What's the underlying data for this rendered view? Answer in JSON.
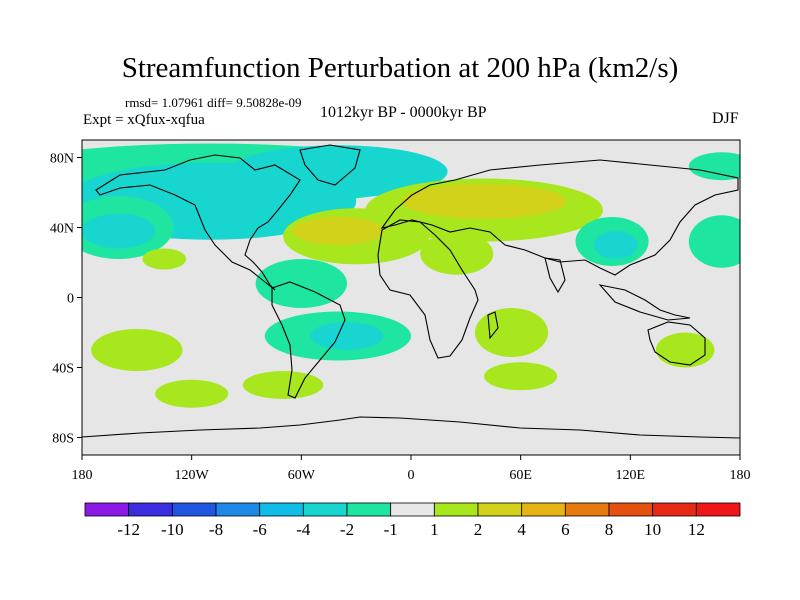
{
  "title": "Streamfunction Perturbation at 200 hPa (km2/s)",
  "stats": "rmsd= 1.07961 diff= 9.50828e-09",
  "expt": "Expt = xQfux-xqfua",
  "period": "1012kyr BP - 0000kyr BP",
  "season": "DJF",
  "lat_ticks": [
    "80N",
    "40N",
    "0",
    "40S",
    "80S"
  ],
  "lon_ticks": [
    "180",
    "120W",
    "60W",
    "0",
    "60E",
    "120E",
    "180"
  ],
  "colorbar": {
    "labels": [
      "-12",
      "-10",
      "-8",
      "-6",
      "-4",
      "-2",
      "-1",
      "1",
      "2",
      "4",
      "6",
      "8",
      "10",
      "12"
    ],
    "colors": [
      "#8c1ae6",
      "#3b2de0",
      "#1f55e0",
      "#1e88e6",
      "#0fbde6",
      "#17d6d0",
      "#1ee6a0",
      "#e8e8e8",
      "#a8e61e",
      "#d2d21a",
      "#e6b414",
      "#e67a0f",
      "#e6500f",
      "#e62814",
      "#ee1616"
    ]
  },
  "map": {
    "land_color": "#e6e6e6",
    "coast_color": "#000000",
    "regions": [
      {
        "color": "#1ee6a0",
        "lon": -110,
        "lat": 70,
        "rx": 120,
        "ry": 18
      },
      {
        "color": "#17d6d0",
        "lon": -110,
        "lat": 55,
        "rx": 80,
        "ry": 22
      },
      {
        "color": "#17d6d0",
        "lon": -40,
        "lat": 72,
        "rx": 60,
        "ry": 15
      },
      {
        "color": "#1ee6a0",
        "lon": -160,
        "lat": 40,
        "rx": 30,
        "ry": 18
      },
      {
        "color": "#17d6d0",
        "lon": -160,
        "lat": 38,
        "rx": 20,
        "ry": 10
      },
      {
        "color": "#a8e61e",
        "lon": -30,
        "lat": 35,
        "rx": 40,
        "ry": 16
      },
      {
        "color": "#d2d21a",
        "lon": -40,
        "lat": 38,
        "rx": 25,
        "ry": 8
      },
      {
        "color": "#a8e61e",
        "lon": 40,
        "lat": 50,
        "rx": 65,
        "ry": 18
      },
      {
        "color": "#d2d21a",
        "lon": 40,
        "lat": 55,
        "rx": 45,
        "ry": 10
      },
      {
        "color": "#a8e61e",
        "lon": 25,
        "lat": 25,
        "rx": 20,
        "ry": 12
      },
      {
        "color": "#1ee6a0",
        "lon": 110,
        "lat": 32,
        "rx": 20,
        "ry": 14
      },
      {
        "color": "#17d6d0",
        "lon": 112,
        "lat": 30,
        "rx": 12,
        "ry": 8
      },
      {
        "color": "#1ee6a0",
        "lon": 170,
        "lat": 32,
        "rx": 18,
        "ry": 15
      },
      {
        "color": "#1ee6a0",
        "lon": 170,
        "lat": 75,
        "rx": 18,
        "ry": 8
      },
      {
        "color": "#a8e61e",
        "lon": -135,
        "lat": 22,
        "rx": 12,
        "ry": 6
      },
      {
        "color": "#1ee6a0",
        "lon": -60,
        "lat": 8,
        "rx": 25,
        "ry": 14
      },
      {
        "color": "#1ee6a0",
        "lon": -40,
        "lat": -22,
        "rx": 40,
        "ry": 14
      },
      {
        "color": "#17d6d0",
        "lon": -35,
        "lat": -22,
        "rx": 20,
        "ry": 8
      },
      {
        "color": "#a8e61e",
        "lon": -150,
        "lat": -30,
        "rx": 25,
        "ry": 12
      },
      {
        "color": "#a8e61e",
        "lon": -120,
        "lat": -55,
        "rx": 20,
        "ry": 8
      },
      {
        "color": "#a8e61e",
        "lon": -70,
        "lat": -50,
        "rx": 22,
        "ry": 8
      },
      {
        "color": "#a8e61e",
        "lon": 55,
        "lat": -20,
        "rx": 20,
        "ry": 14
      },
      {
        "color": "#a8e61e",
        "lon": 60,
        "lat": -45,
        "rx": 20,
        "ry": 8
      },
      {
        "color": "#a8e61e",
        "lon": 150,
        "lat": -30,
        "rx": 16,
        "ry": 10
      }
    ]
  }
}
